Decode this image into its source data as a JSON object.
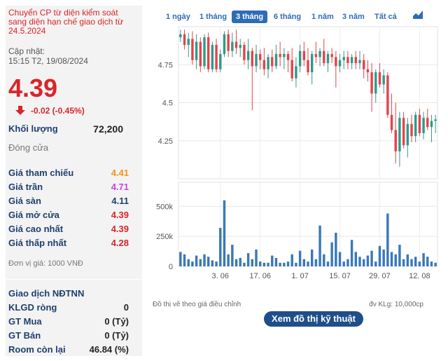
{
  "info": {
    "status_note": "Chuyển CP từ diện kiểm soát sang diện hạn chế giao dịch từ 24.5.2024",
    "update_label": "Cập nhật:",
    "update_time": "15:15 T2, 19/08/2024",
    "price": "4.39",
    "change": "-0.02 (-0.45%)",
    "volume_label": "Khối lượng",
    "volume_value": "72,200",
    "close_label": "Đóng cửa",
    "unit_note": "Đơn vị giá: 1000 VNĐ",
    "down_color": "#d9252a"
  },
  "price_rows": [
    {
      "label": "Giá tham chiếu",
      "value": "4.41",
      "color": "#f0951c"
    },
    {
      "label": "Giá trần",
      "value": "4.71",
      "color": "#d23fe0"
    },
    {
      "label": "Giá sàn",
      "value": "4.11",
      "color": "#1f3f6e"
    },
    {
      "label": "Giá mở cửa",
      "value": "4.39",
      "color": "#d9252a"
    },
    {
      "label": "Giá cao nhất",
      "value": "4.39",
      "color": "#d9252a"
    },
    {
      "label": "Giá thấp nhất",
      "value": "4.28",
      "color": "#d9252a"
    }
  ],
  "foreign": {
    "title": "Giao dịch NĐTNN",
    "rows": [
      {
        "label": "KLGD ròng",
        "value": "0"
      },
      {
        "label": "GT Mua",
        "value": "0 (Tỷ)"
      },
      {
        "label": "GT Bán",
        "value": "0 (Tỷ)"
      },
      {
        "label": "Room còn lại",
        "value": "46.84 (%)"
      }
    ]
  },
  "tabs": [
    {
      "label": "1 ngày",
      "active": false
    },
    {
      "label": "1 tháng",
      "active": false
    },
    {
      "label": "3 tháng",
      "active": true
    },
    {
      "label": "6 tháng",
      "active": false
    },
    {
      "label": "1 năm",
      "active": false
    },
    {
      "label": "3 năm",
      "active": false
    },
    {
      "label": "Tất cả",
      "active": false
    }
  ],
  "chart_icon": "area-chart-icon",
  "footer": {
    "note_left": "Đồ thị vẽ theo giá điều chỉnh",
    "note_right": "đv KLg: 10,000cp",
    "tech_button": "Xem đồ thị kỹ thuật"
  },
  "chart_data": {
    "type": "candlestick",
    "price_ticks": [
      "4.75",
      "4.5",
      "4.25"
    ],
    "price_tick_values": [
      4.75,
      4.5,
      4.25
    ],
    "price_range": [
      4.0,
      5.0
    ],
    "volume_ticks": [
      "500k",
      "250k",
      "0"
    ],
    "volume_tick_values": [
      500000,
      250000,
      0
    ],
    "volume_range": [
      0,
      700000
    ],
    "x_tick_labels": [
      "3. 06",
      "17. 06",
      "1. 07",
      "15. 07",
      "29. 07",
      "12. 08"
    ],
    "x_tick_index": [
      10,
      20,
      30,
      40,
      50,
      60
    ],
    "up_color": "#2e9a8a",
    "down_color": "#e4434b",
    "volume_color": "#3a78b8",
    "candles": [
      [
        4.93,
        4.98,
        4.9,
        4.95,
        120000
      ],
      [
        4.95,
        4.98,
        4.85,
        4.88,
        100000
      ],
      [
        4.88,
        4.96,
        4.8,
        4.92,
        60000
      ],
      [
        4.92,
        4.97,
        4.75,
        4.78,
        40000
      ],
      [
        4.78,
        4.95,
        4.72,
        4.9,
        90000
      ],
      [
        4.9,
        4.93,
        4.7,
        4.74,
        60000
      ],
      [
        4.74,
        4.95,
        4.72,
        4.93,
        100000
      ],
      [
        4.93,
        4.96,
        4.7,
        4.72,
        80000
      ],
      [
        4.72,
        4.9,
        4.7,
        4.88,
        50000
      ],
      [
        4.88,
        4.92,
        4.7,
        4.72,
        40000
      ],
      [
        4.72,
        4.85,
        4.7,
        4.82,
        320000
      ],
      [
        4.82,
        4.97,
        4.8,
        4.95,
        550000
      ],
      [
        4.95,
        4.98,
        4.8,
        4.84,
        100000
      ],
      [
        4.84,
        4.96,
        4.8,
        4.9,
        180000
      ],
      [
        4.9,
        4.98,
        4.82,
        4.86,
        60000
      ],
      [
        4.86,
        4.92,
        4.8,
        4.88,
        70000
      ],
      [
        4.88,
        4.9,
        4.75,
        4.78,
        30000
      ],
      [
        4.78,
        4.92,
        4.72,
        4.84,
        110000
      ],
      [
        4.84,
        4.86,
        4.45,
        4.74,
        60000
      ],
      [
        4.74,
        4.88,
        4.7,
        4.82,
        140000
      ],
      [
        4.82,
        4.85,
        4.72,
        4.78,
        40000
      ],
      [
        4.78,
        4.86,
        4.68,
        4.72,
        30000
      ],
      [
        4.72,
        4.82,
        4.66,
        4.8,
        30000
      ],
      [
        4.8,
        4.85,
        4.7,
        4.74,
        90000
      ],
      [
        4.74,
        4.88,
        4.72,
        4.82,
        70000
      ],
      [
        4.82,
        4.9,
        4.74,
        4.8,
        30000
      ],
      [
        4.8,
        4.86,
        4.72,
        4.82,
        30000
      ],
      [
        4.82,
        4.84,
        4.7,
        4.78,
        40000
      ],
      [
        4.78,
        4.86,
        4.64,
        4.66,
        100000
      ],
      [
        4.66,
        4.8,
        4.6,
        4.74,
        30000
      ],
      [
        4.74,
        4.88,
        4.7,
        4.84,
        130000
      ],
      [
        4.84,
        4.9,
        4.74,
        4.78,
        60000
      ],
      [
        4.78,
        4.86,
        4.68,
        4.7,
        40000
      ],
      [
        4.7,
        4.84,
        4.62,
        4.82,
        140000
      ],
      [
        4.82,
        4.9,
        4.76,
        4.8,
        60000
      ],
      [
        4.8,
        4.86,
        4.74,
        4.84,
        340000
      ],
      [
        4.84,
        4.92,
        4.74,
        4.76,
        100000
      ],
      [
        4.76,
        4.84,
        4.7,
        4.82,
        40000
      ],
      [
        4.82,
        4.86,
        4.76,
        4.8,
        200000
      ],
      [
        4.8,
        4.84,
        4.6,
        4.74,
        280000
      ],
      [
        4.74,
        4.82,
        4.7,
        4.78,
        120000
      ],
      [
        4.78,
        4.84,
        4.72,
        4.8,
        40000
      ],
      [
        4.8,
        4.84,
        4.72,
        4.76,
        60000
      ],
      [
        4.76,
        4.82,
        4.72,
        4.8,
        220000
      ],
      [
        4.8,
        4.84,
        4.72,
        4.76,
        120000
      ],
      [
        4.76,
        4.84,
        4.72,
        4.78,
        80000
      ],
      [
        4.78,
        4.82,
        4.66,
        4.72,
        60000
      ],
      [
        4.72,
        4.78,
        4.64,
        4.7,
        90000
      ],
      [
        4.7,
        4.76,
        4.44,
        4.56,
        130000
      ],
      [
        4.56,
        4.72,
        4.5,
        4.7,
        40000
      ],
      [
        4.7,
        4.76,
        4.6,
        4.62,
        170000
      ],
      [
        4.62,
        4.72,
        4.56,
        4.68,
        140000
      ],
      [
        4.68,
        4.7,
        4.4,
        4.42,
        440000
      ],
      [
        4.42,
        4.56,
        4.3,
        4.32,
        120000
      ],
      [
        4.32,
        4.5,
        4.1,
        4.18,
        100000
      ],
      [
        4.18,
        4.44,
        4.08,
        4.4,
        180000
      ],
      [
        4.4,
        4.44,
        4.2,
        4.22,
        60000
      ],
      [
        4.22,
        4.4,
        4.14,
        4.36,
        100000
      ],
      [
        4.36,
        4.42,
        4.24,
        4.28,
        60000
      ],
      [
        4.28,
        4.44,
        4.24,
        4.42,
        80000
      ],
      [
        4.42,
        4.46,
        4.28,
        4.3,
        40000
      ],
      [
        4.3,
        4.44,
        4.26,
        4.4,
        110000
      ],
      [
        4.4,
        4.46,
        4.32,
        4.34,
        80000
      ],
      [
        4.34,
        4.42,
        4.24,
        4.38,
        40000
      ],
      [
        4.38,
        4.42,
        4.3,
        4.39,
        30000
      ]
    ]
  }
}
